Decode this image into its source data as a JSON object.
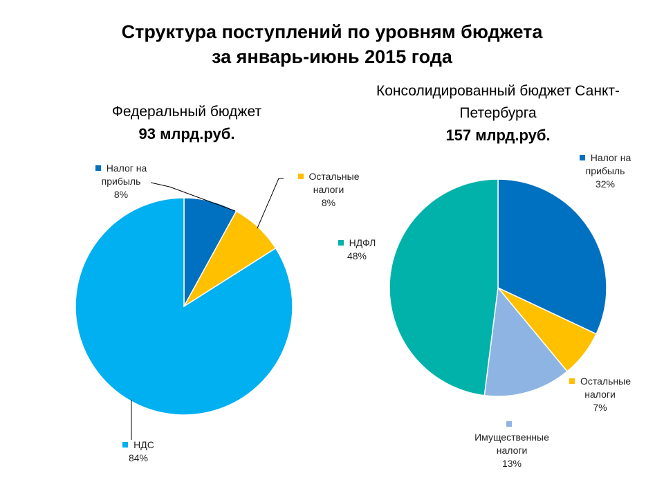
{
  "title_line1": "Структура поступлений по уровням бюджета",
  "title_line2": "за январь-июнь 2015 года",
  "chart_data": [
    {
      "type": "pie",
      "title": "Федеральный бюджет",
      "subtitle": "93 млрд.руб.",
      "slices": [
        {
          "label": "Налог на прибыль",
          "value": 8,
          "value_label": "8%",
          "color": "#0070C0"
        },
        {
          "label": "Остальные налоги",
          "value": 8,
          "value_label": "8%",
          "color": "#FFC000"
        },
        {
          "label": "НДС",
          "value": 84,
          "value_label": "84%",
          "color": "#00B0F0"
        }
      ]
    },
    {
      "type": "pie",
      "title": "Консолидированный бюджет Санкт-Петербурга",
      "subtitle": "157 млрд.руб.",
      "slices": [
        {
          "label": "Налог на прибыль",
          "value": 32,
          "value_label": "32%",
          "color": "#0070C0"
        },
        {
          "label": "Остальные налоги",
          "value": 7,
          "value_label": "7%",
          "color": "#FFC000"
        },
        {
          "label": "Имущественные налоги",
          "value": 13,
          "value_label": "13%",
          "color": "#8EB4E3"
        },
        {
          "label": "НДФЛ",
          "value": 48,
          "value_label": "48%",
          "color": "#00B2A9"
        }
      ]
    }
  ]
}
